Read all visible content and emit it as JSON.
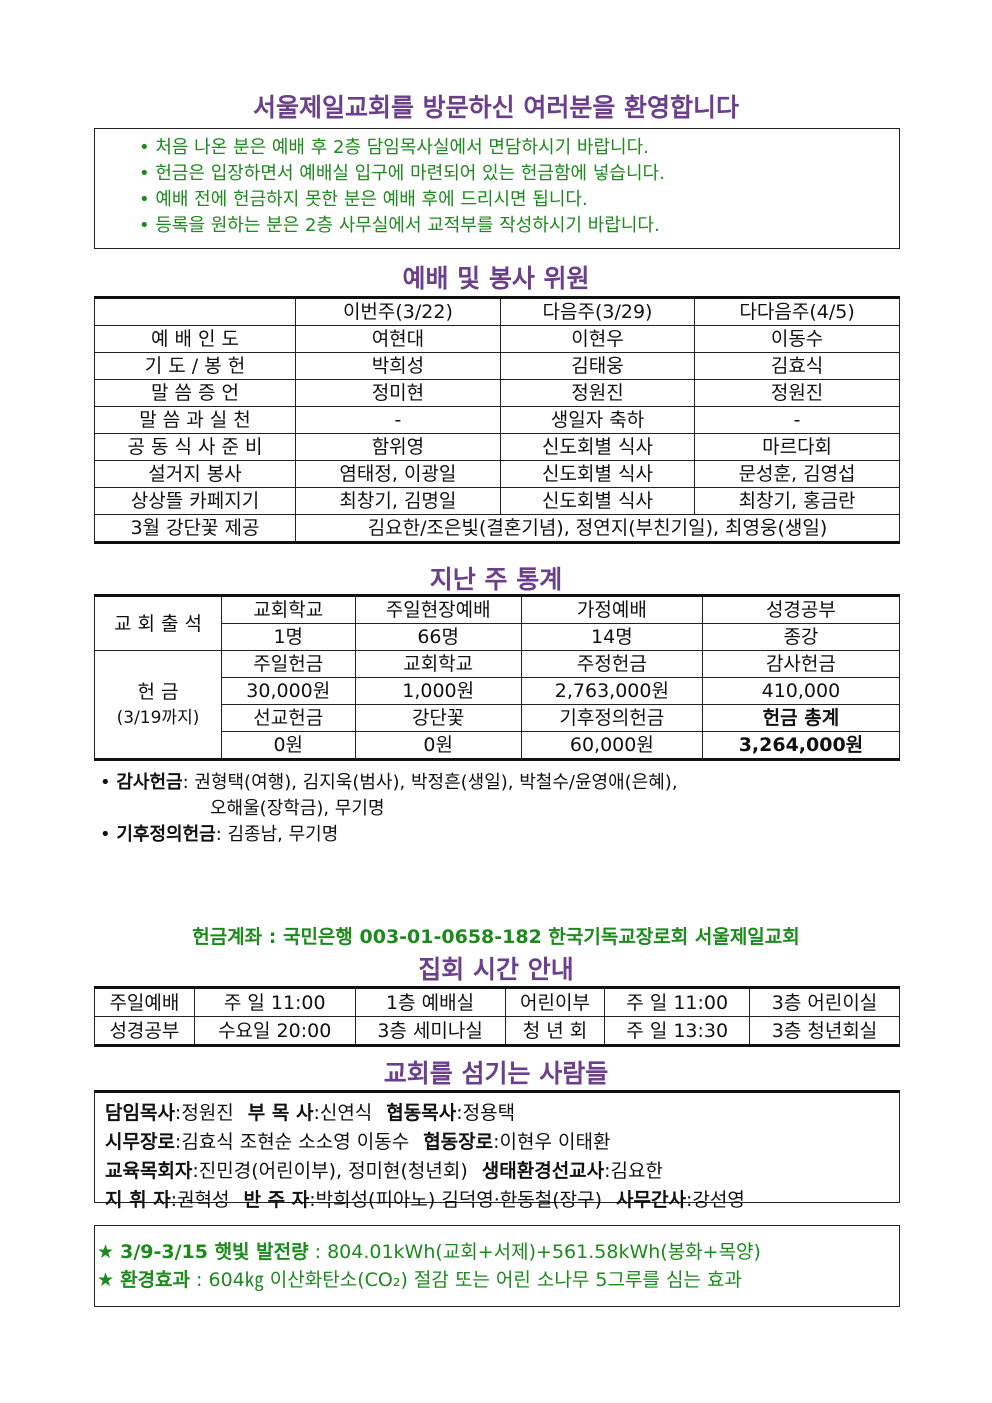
{
  "welcome": {
    "title": "서울제일교회를 방문하신 여러분을 환영합니다",
    "items": [
      "처음 나온 분은 예배 후 2층 담임목사실에서 면담하시기 바랍니다.",
      "헌금은 입장하면서 예배실 입구에 마련되어 있는 헌금함에 넣습니다.",
      "예배 전에 헌금하지 못한 분은 예배 후에 드리시면 됩니다.",
      "등록을 원하는 분은 2층 사무실에서 교적부를 작성하시기 바랍니다."
    ]
  },
  "duty": {
    "title": "예배 및 봉사 위원",
    "headers": [
      "",
      "이번주(3/22)",
      "다음주(3/29)",
      "다다음주(4/5)"
    ],
    "rows": [
      [
        "예 배 인 도",
        "여현대",
        "이현우",
        "이동수"
      ],
      [
        "기 도 / 봉 헌",
        "박희성",
        "김태웅",
        "김효식"
      ],
      [
        "말 씀 증 언",
        "정미현",
        "정원진",
        "정원진"
      ],
      [
        "말 씀 과 실 천",
        "-",
        "생일자 축하",
        "-"
      ],
      [
        "공 동 식 사 준 비",
        "함위영",
        "신도회별 식사",
        "마르다회"
      ],
      [
        "설거지 봉사",
        "염태정, 이광일",
        "신도회별 식사",
        "문성훈, 김영섭"
      ],
      [
        "상상뜰 카페지기",
        "최창기, 김명일",
        "신도회별 식사",
        "최창기, 홍금란"
      ]
    ],
    "flowers": {
      "label": "3월 강단꽃 제공",
      "value": "김요한/조은빛(결혼기념), 정연지(부친기일), 최영웅(생일)"
    }
  },
  "stats": {
    "title": "지난 주 통계",
    "attendance_label": "교 회 출 석",
    "attendance_headers": [
      "교회학교",
      "주일현장예배",
      "가정예배",
      "성경공부"
    ],
    "attendance_values": [
      "1명",
      "66명",
      "14명",
      "종강"
    ],
    "offering_label": "헌 금",
    "offering_sub": "(3/19까지)",
    "offering_headers1": [
      "주일헌금",
      "교회학교",
      "주정헌금",
      "감사헌금"
    ],
    "offering_values1": [
      "30,000원",
      "1,000원",
      "2,763,000원",
      "410,000"
    ],
    "offering_headers2": [
      "선교헌금",
      "강단꽃",
      "기후정의헌금",
      "헌금 총계"
    ],
    "offering_values2": [
      "0원",
      "0원",
      "60,000원",
      "3,264,000원"
    ],
    "thanks_label": "감사헌금",
    "thanks_line1": ": 권형택(여행), 김지욱(범사), 박정흔(생일), 박철수/윤영애(은혜),",
    "thanks_line2": "오해울(장학금), 무기명",
    "climate_label": "기후정의헌금",
    "climate_value": ": 김종남, 무기명"
  },
  "account": "헌금계좌 : 국민은행 003-01-0658-182 한국기독교장로회 서울제일교회",
  "meetings": {
    "title": "집회 시간 안내",
    "rows": [
      [
        "주일예배",
        "주 일 11:00",
        "1층 예배실",
        "어린이부",
        "주 일 11:00",
        "3층 어린이실"
      ],
      [
        "성경공부",
        "수요일 20:00",
        "3층 세미나실",
        "청 년 회",
        "주 일 13:30",
        "3층 청년회실"
      ]
    ]
  },
  "staff": {
    "title": "교회를 섬기는 사람들",
    "lines": [
      [
        [
          "담임목사",
          ":정원진"
        ],
        [
          "부 목 사",
          ":신연식"
        ],
        [
          "협동목사",
          ":정용택"
        ]
      ],
      [
        [
          "시무장로",
          ":김효식 조현순 소소영 이동수"
        ],
        [
          "협동장로",
          ":이현우 이태환"
        ]
      ],
      [
        [
          "교육목회자",
          ":진민경(어린이부), 정미현(청년회)"
        ],
        [
          "생태환경선교사",
          ":김요한"
        ]
      ],
      [
        [
          "지 휘 자",
          ":권혁성"
        ],
        [
          "반 주 자",
          ":박희성(피아노) 김덕영·한동철(장구)"
        ],
        [
          "사무간사",
          ":강선영"
        ]
      ]
    ]
  },
  "solar": {
    "line1_label": "3/9-3/15 햇빛 발전량",
    "line1_value": " : 804.01kWh(교회+서제)+561.58kWh(봉화+목양)",
    "line2_label": "환경효과",
    "line2_value": " : 604㎏ 이산화탄소(CO₂) 절감 또는 어린 소나무 5그루를 심는 효과"
  },
  "colors": {
    "heading": "#6b3f8c",
    "green": "#1c8a1c"
  }
}
